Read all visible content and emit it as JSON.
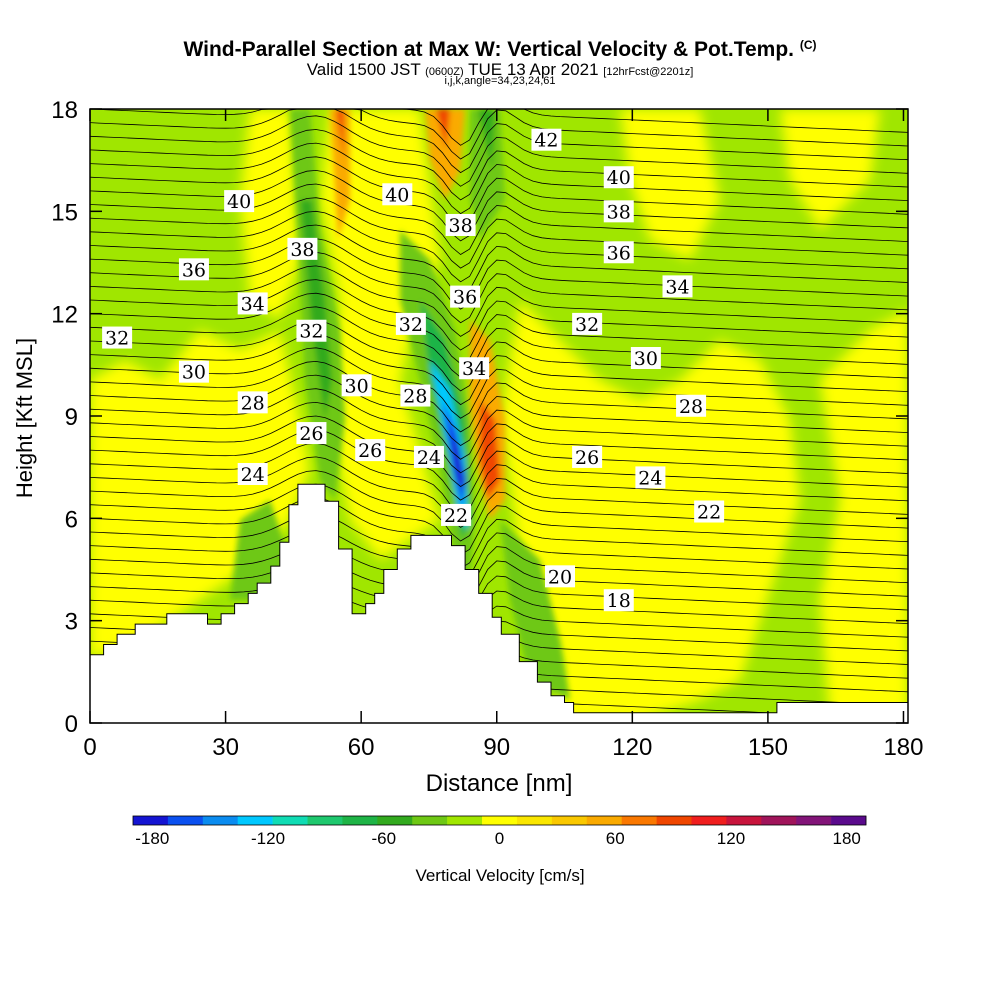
{
  "header": {
    "title_main": "Wind-Parallel Section at Max W: Vertical Velocity & Pot.Temp.",
    "title_copyright": "(C)",
    "valid_prefix": "Valid 1500 JST",
    "valid_utc": "(0600Z)",
    "valid_date": "TUE 13 Apr 2021",
    "forecast": "[12hrFcst@2201z]",
    "indices": "i,j,k,angle=34,23,24,61"
  },
  "chart_data": {
    "type": "heatmap",
    "xlabel": "Distance [nm]",
    "ylabel": "Height [Kft MSL]",
    "xlim": [
      0,
      181
    ],
    "ylim": [
      0,
      18
    ],
    "x_ticks": [
      0,
      30,
      60,
      90,
      120,
      150,
      180
    ],
    "y_ticks": [
      0,
      3,
      6,
      9,
      12,
      15,
      18
    ],
    "terrain": [
      [
        0,
        2
      ],
      [
        3,
        2
      ],
      [
        3,
        2.3
      ],
      [
        6,
        2.3
      ],
      [
        6,
        2.6
      ],
      [
        10,
        2.6
      ],
      [
        10,
        2.9
      ],
      [
        17,
        2.9
      ],
      [
        17,
        3.2
      ],
      [
        26,
        3.2
      ],
      [
        26,
        2.9
      ],
      [
        29,
        2.9
      ],
      [
        29,
        3.2
      ],
      [
        32,
        3.2
      ],
      [
        32,
        3.5
      ],
      [
        35,
        3.5
      ],
      [
        35,
        3.8
      ],
      [
        37,
        3.8
      ],
      [
        37,
        4.1
      ],
      [
        40,
        4.1
      ],
      [
        40,
        4.6
      ],
      [
        42,
        4.6
      ],
      [
        42,
        5.3
      ],
      [
        44,
        5.3
      ],
      [
        44,
        6.4
      ],
      [
        46,
        6.4
      ],
      [
        46,
        7.0
      ],
      [
        52,
        7.0
      ],
      [
        52,
        6.5
      ],
      [
        55,
        6.5
      ],
      [
        55,
        5.1
      ],
      [
        58,
        5.1
      ],
      [
        58,
        3.2
      ],
      [
        61,
        3.2
      ],
      [
        61,
        3.5
      ],
      [
        63,
        3.5
      ],
      [
        63,
        3.8
      ],
      [
        65,
        3.8
      ],
      [
        65,
        4.5
      ],
      [
        68,
        4.5
      ],
      [
        68,
        5.1
      ],
      [
        71,
        5.1
      ],
      [
        71,
        5.5
      ],
      [
        80,
        5.5
      ],
      [
        80,
        5.2
      ],
      [
        83,
        5.2
      ],
      [
        83,
        4.5
      ],
      [
        86,
        4.5
      ],
      [
        86,
        3.8
      ],
      [
        89,
        3.8
      ],
      [
        89,
        3.1
      ],
      [
        91,
        3.1
      ],
      [
        91,
        2.6
      ],
      [
        95,
        2.6
      ],
      [
        95,
        1.8
      ],
      [
        99,
        1.8
      ],
      [
        99,
        1.2
      ],
      [
        102,
        1.2
      ],
      [
        102,
        0.8
      ],
      [
        105,
        0.8
      ],
      [
        105,
        0.6
      ],
      [
        107,
        0.6
      ],
      [
        107,
        0.3
      ],
      [
        152,
        0.3
      ],
      [
        152,
        0.6
      ],
      [
        181,
        0.6
      ],
      [
        181,
        0
      ],
      [
        0,
        0
      ]
    ],
    "vertical_velocity_features": [
      {
        "x": 56,
        "y": 16.8,
        "w": 120
      },
      {
        "x": 78,
        "y": 17.0,
        "w": 80
      },
      {
        "x": 83,
        "y": 8.3,
        "w": -180
      },
      {
        "x": 88,
        "y": 8.0,
        "w": 110
      },
      {
        "x": 51,
        "y": 10.0,
        "w": -50
      },
      {
        "x": 92,
        "y": 14.5,
        "w": -40
      }
    ],
    "theta_contour_labels": [
      {
        "text": "42",
        "x": 101,
        "y": 17.1
      },
      {
        "text": "40",
        "x": 117,
        "y": 16.0
      },
      {
        "text": "40",
        "x": 33,
        "y": 15.3
      },
      {
        "text": "40",
        "x": 68,
        "y": 15.5
      },
      {
        "text": "38",
        "x": 117,
        "y": 15.0
      },
      {
        "text": "38",
        "x": 47,
        "y": 13.9
      },
      {
        "text": "38",
        "x": 82,
        "y": 14.6
      },
      {
        "text": "36",
        "x": 117,
        "y": 13.8
      },
      {
        "text": "36",
        "x": 23,
        "y": 13.3
      },
      {
        "text": "36",
        "x": 83,
        "y": 12.5
      },
      {
        "text": "34",
        "x": 130,
        "y": 12.8
      },
      {
        "text": "34",
        "x": 36,
        "y": 12.3
      },
      {
        "text": "34",
        "x": 85,
        "y": 10.4
      },
      {
        "text": "32",
        "x": 6,
        "y": 11.3
      },
      {
        "text": "32",
        "x": 49,
        "y": 11.5
      },
      {
        "text": "32",
        "x": 71,
        "y": 11.7
      },
      {
        "text": "32",
        "x": 110,
        "y": 11.7
      },
      {
        "text": "30",
        "x": 23,
        "y": 10.3
      },
      {
        "text": "30",
        "x": 59,
        "y": 9.9
      },
      {
        "text": "30",
        "x": 123,
        "y": 10.7
      },
      {
        "text": "28",
        "x": 36,
        "y": 9.4
      },
      {
        "text": "28",
        "x": 72,
        "y": 9.6
      },
      {
        "text": "28",
        "x": 133,
        "y": 9.3
      },
      {
        "text": "26",
        "x": 49,
        "y": 8.5
      },
      {
        "text": "26",
        "x": 62,
        "y": 8.0
      },
      {
        "text": "26",
        "x": 110,
        "y": 7.8
      },
      {
        "text": "24",
        "x": 36,
        "y": 7.3
      },
      {
        "text": "24",
        "x": 75,
        "y": 7.8
      },
      {
        "text": "24",
        "x": 124,
        "y": 7.2
      },
      {
        "text": "22",
        "x": 81,
        "y": 6.1
      },
      {
        "text": "22",
        "x": 137,
        "y": 6.2
      },
      {
        "text": "20",
        "x": 104,
        "y": 4.3
      },
      {
        "text": "18",
        "x": 117,
        "y": 3.6
      }
    ]
  },
  "colorbar": {
    "label": "Vertical Velocity [cm/s]",
    "ticks": [
      "-180",
      "-120",
      "-60",
      "0",
      "60",
      "120",
      "180"
    ],
    "tick_values": [
      -180,
      -120,
      -60,
      0,
      60,
      120,
      180
    ],
    "range": [
      -190,
      190
    ],
    "colors": [
      "#1414d2",
      "#0a50f0",
      "#0a8cf0",
      "#00c8ff",
      "#10dcb4",
      "#1ec86e",
      "#1eb446",
      "#32aa1e",
      "#6ec814",
      "#a0e600",
      "#ffff00",
      "#fae600",
      "#fac800",
      "#faaa00",
      "#fa7800",
      "#f04600",
      "#f01e1e",
      "#c8143c",
      "#a0145a",
      "#821478",
      "#5a0a8c"
    ]
  },
  "shading_colors": {
    "background_green": "#a0e600",
    "yellow": "#ffff00",
    "light_yellow": "#fae600",
    "dark_green": "#6ec814",
    "green": "#32aa1e",
    "orange": "#faaa00",
    "red": "#f04600",
    "blue": "#1414d2",
    "cyan": "#00c8ff"
  }
}
